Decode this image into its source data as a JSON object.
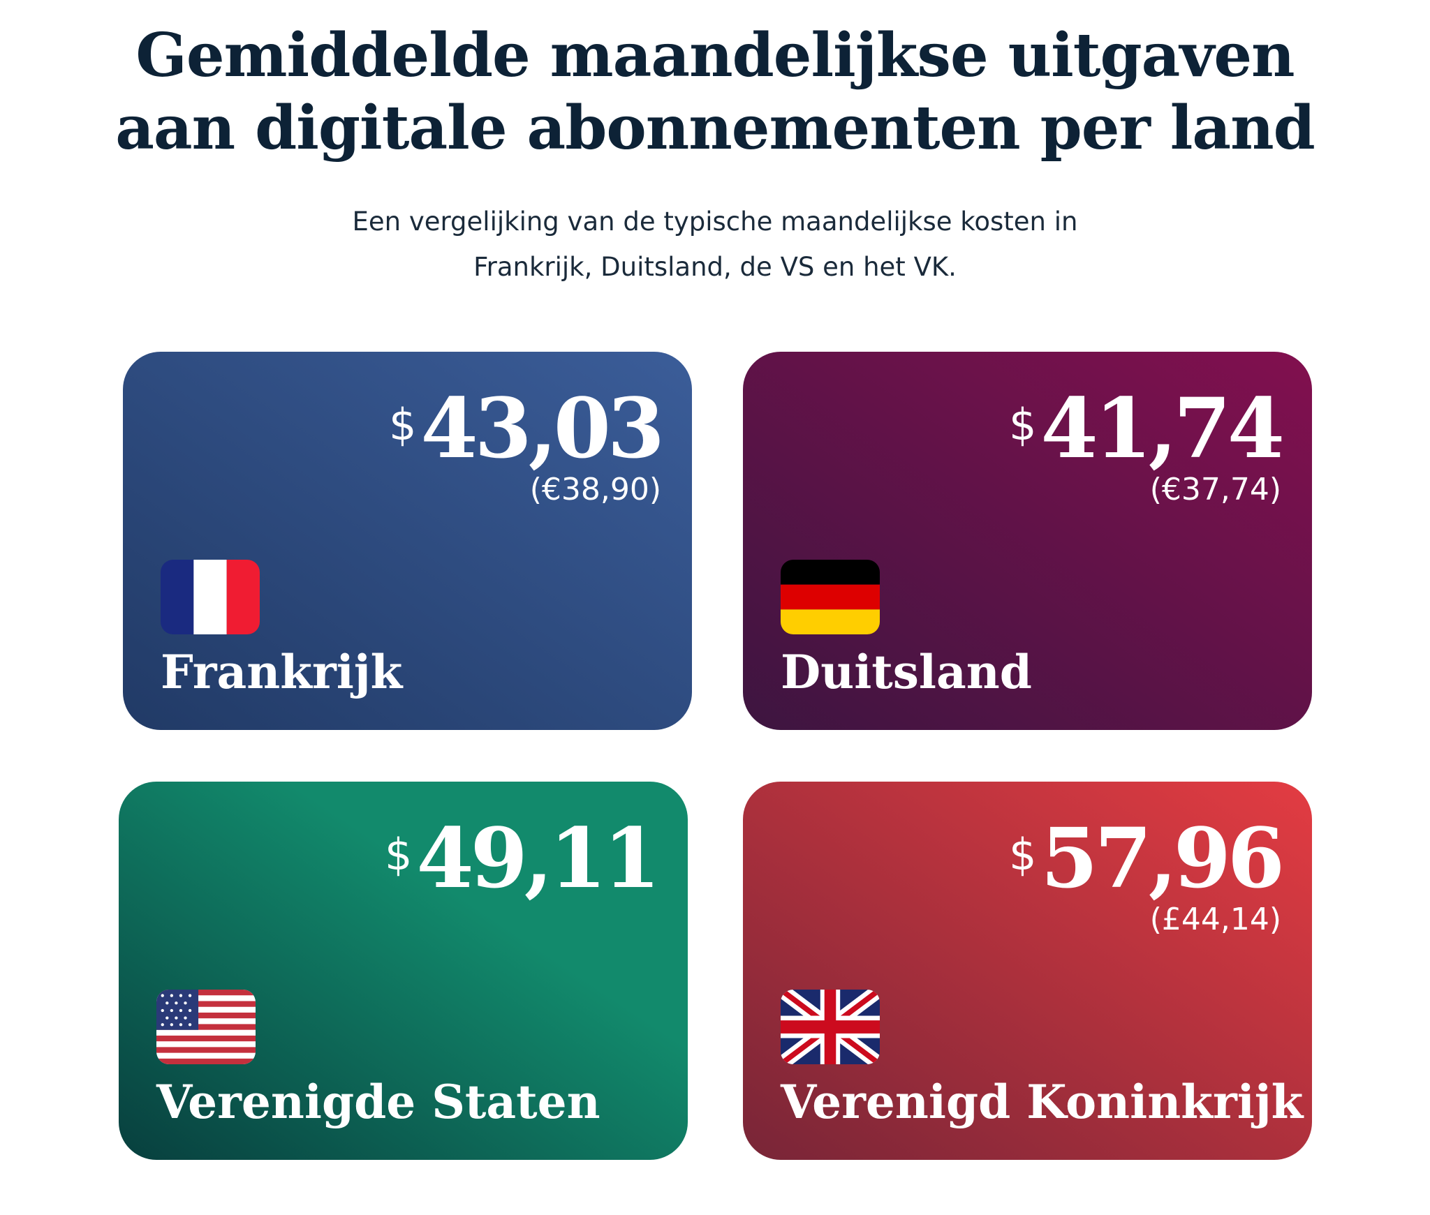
{
  "title_line1": "Gemiddelde maandelijkse uitgaven",
  "title_line2": "aan digitale abonnementen per land",
  "subtitle_line1": "Een vergelijking van de typische maandelijkse kosten in",
  "subtitle_line2": "Frankrijk, Duitsland, de VS en het VK.",
  "colors": {
    "france": "#3b5d99",
    "germany": "#82104f",
    "usa": "#128a6c",
    "uk": "#e33c42"
  },
  "cards": [
    {
      "country": "Frankrijk",
      "currency": "$",
      "amount": "43,03",
      "local": "(€38,90)",
      "flag": "flag-france-icon"
    },
    {
      "country": "Duitsland",
      "currency": "$",
      "amount": "41,74",
      "local": "(€37,74)",
      "flag": "flag-germany-icon"
    },
    {
      "country": "Verenigde Staten",
      "currency": "$",
      "amount": "49,11",
      "local": "",
      "flag": "flag-usa-icon"
    },
    {
      "country": "Verenigd Koninkrijk",
      "currency": "$",
      "amount": "57,96",
      "local": "(£44,14)",
      "flag": "flag-uk-icon"
    }
  ]
}
